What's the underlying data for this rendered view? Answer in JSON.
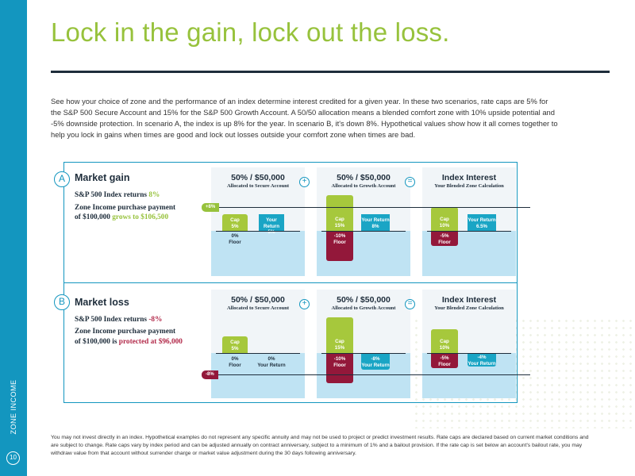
{
  "colors": {
    "brand_blue": "#1396bf",
    "title_green": "#97c23c",
    "navy": "#1e2d3b",
    "floor_red": "#93183a",
    "cap_green": "#a6c83c",
    "return_teal": "#1aa5c5"
  },
  "sidebar": {
    "label": "ZONE INCOME",
    "page_number": "10"
  },
  "title": "Lock in the gain, lock out the loss.",
  "intro": "See how your choice of zone and the performance of an index determine interest credited for a given year. In these two scenarios, rate caps are 5% for the S&P 500 Secure Account and 15% for the S&P 500 Growth Account. A 50/50 allocation means a blended comfort zone with 10% upside potential and -5% downside protection. In scenario A, the index is up 8% for the year. In scenario B, it's down 8%. Hypothetical values show how it all comes together to help you lock in gains when times are good and lock out losses outside your comfort zone when times are bad.",
  "operators": {
    "plus": "+",
    "equals": "="
  },
  "scenario_a": {
    "letter": "A",
    "title": "Market gain",
    "line1_prefix": "S&P 500 Index returns ",
    "line1_value": "8%",
    "line2": "Zone Income purchase payment",
    "line3_prefix": "of $100,000 ",
    "line3_value": "grows to $106,500",
    "index_tag": "+8%",
    "secure": {
      "head": "50% / $50,000",
      "sub": "Allocated to Secure Account",
      "cap_label": "Cap",
      "cap": "5%",
      "return_label": "Your Return",
      "return": "5%",
      "floor": "0%",
      "floor_label": "Floor"
    },
    "growth": {
      "head": "50% / $50,000",
      "sub": "Allocated to Growth Account",
      "cap_label": "Cap",
      "cap": "15%",
      "return_label": "Your Return",
      "return": "8%",
      "floor": "-10%",
      "floor_label": "Floor"
    },
    "interest": {
      "head": "Index Interest",
      "sub": "Your Blended Zone Calculation",
      "cap_label": "Cap",
      "cap": "10%",
      "return_label": "Your Return",
      "return": "6.5%",
      "floor": "-5%",
      "floor_label": "Floor"
    }
  },
  "scenario_b": {
    "letter": "B",
    "title": "Market loss",
    "line1_prefix": "S&P 500 Index returns ",
    "line1_value": "-8%",
    "line2": "Zone Income purchase payment",
    "line3_prefix": "of $100,000 is ",
    "line3_value": "protected at $96,000",
    "index_tag": "-8%",
    "secure": {
      "head": "50% / $50,000",
      "sub": "Allocated to Secure Account",
      "cap_label": "Cap",
      "cap": "5%",
      "return_label": "Your Return",
      "return": "0%",
      "floor": "0%",
      "floor_label": "Floor"
    },
    "growth": {
      "head": "50% / $50,000",
      "sub": "Allocated to Growth Account",
      "cap_label": "Cap",
      "cap": "15%",
      "return_label": "Your Return",
      "return": "-8%",
      "floor": "-10%",
      "floor_label": "Floor"
    },
    "interest": {
      "head": "Index Interest",
      "sub": "Your Blended Zone Calculation",
      "cap_label": "Cap",
      "cap": "10%",
      "return_label": "Your Return",
      "return": "-4%",
      "floor": "-5%",
      "floor_label": "Floor"
    }
  },
  "footnote": "You may not invest directly in an index. Hypothetical examples do not represent any specific annuity and may not be used to project or predict investment results. Rate caps are declared based on current market conditions and are subject to change. Rate caps vary by index period and can be adjusted annually on contract anniversary, subject to a minimum of 1% and a bailout provision. If the rate cap is set below an account's bailout rate, you may withdraw value from that account without surrender charge or market value adjustment during the 30 days following anniversary."
}
